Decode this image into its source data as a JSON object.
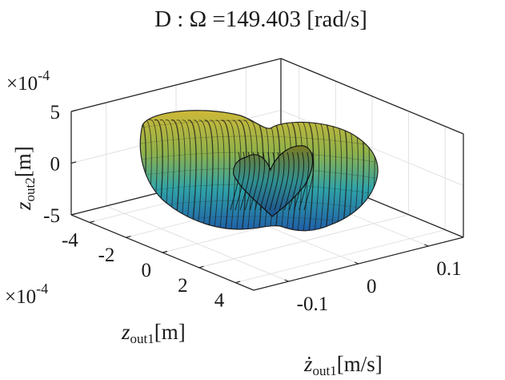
{
  "chart_data": {
    "type": "surface3d",
    "title": "D : Ω =149.403 [rad/s]",
    "axes": {
      "x": {
        "label_main": "z",
        "label_sub": "out1",
        "label_unit": "[m]",
        "exponent_label": "×10",
        "exponent_power": "-4",
        "ticks": [
          -4,
          -2,
          0,
          2,
          4
        ],
        "tick_labels": [
          "-4",
          "-2",
          "0",
          "2",
          "4"
        ],
        "range": [
          -5,
          5
        ]
      },
      "y": {
        "label_main": "ż",
        "label_sub": "out1",
        "label_unit": "[m/s]",
        "ticks": [
          -0.1,
          0,
          0.1
        ],
        "tick_labels": [
          "-0.1",
          "0",
          "0.1"
        ],
        "range": [
          -0.15,
          0.15
        ]
      },
      "z": {
        "label_main": "z",
        "label_sub": "out2",
        "label_unit": "[m]",
        "exponent_label": "×10",
        "exponent_power": "-4",
        "ticks": [
          -5,
          0,
          5
        ],
        "tick_labels": [
          "-5",
          "0",
          "5"
        ],
        "range": [
          -5,
          5
        ]
      }
    },
    "grid": true,
    "colormap": [
      "#1f5fa8",
      "#1e9bb5",
      "#56b870",
      "#c7b633",
      "#b59e2a"
    ],
    "edge_color": "#111111"
  }
}
